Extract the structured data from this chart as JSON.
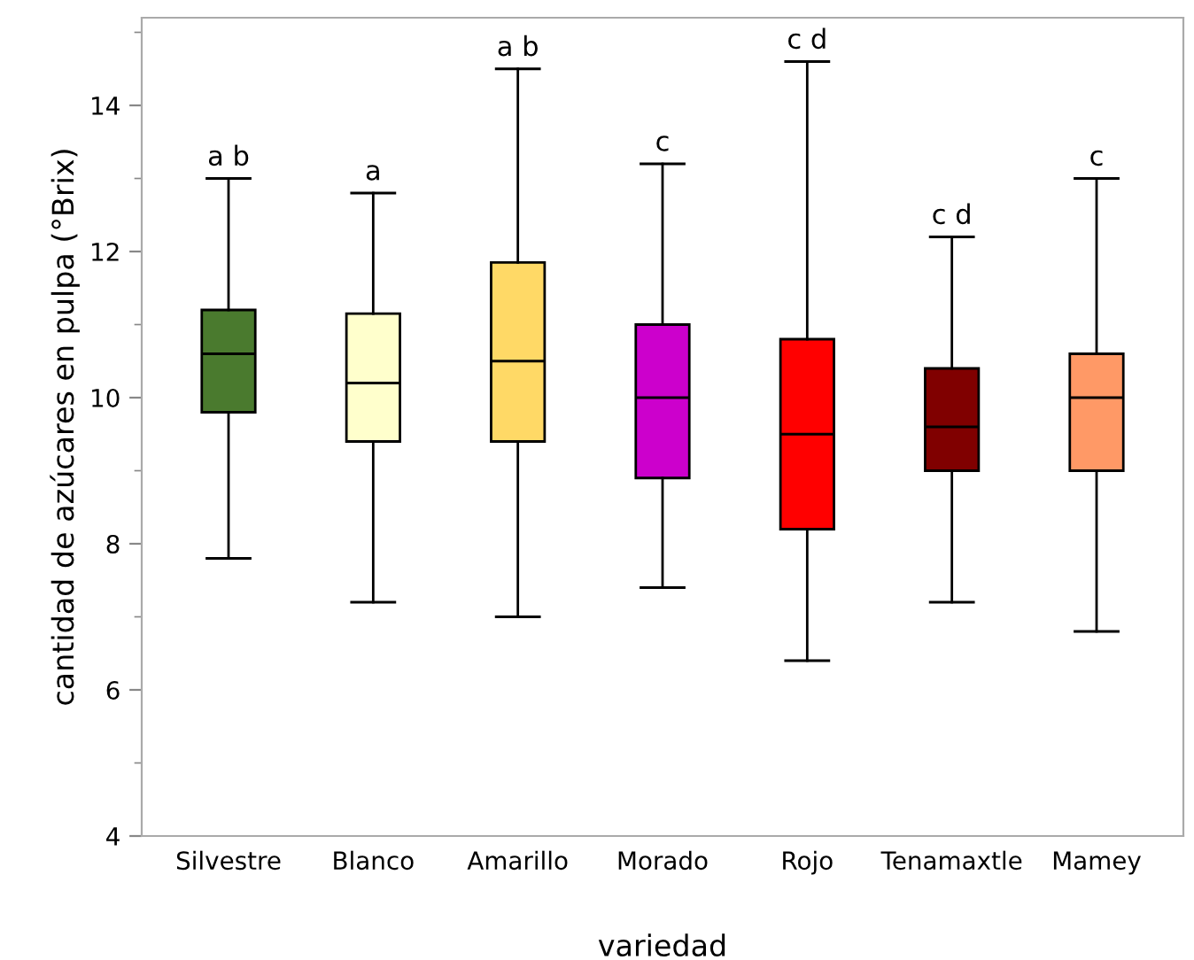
{
  "chart_data": {
    "type": "box",
    "xlabel": "variedad",
    "ylabel": "cantidad de azúcares en pulpa (°Brix)",
    "categories": [
      "Silvestre",
      "Blanco",
      "Amarillo",
      "Morado",
      "Rojo",
      "Tenamaxtle",
      "Mamey"
    ],
    "colors": [
      "#4a7a2e",
      "#ffffcc",
      "#ffd966",
      "#cc00cc",
      "#ff0000",
      "#800000",
      "#ff9966"
    ],
    "boxes": [
      {
        "low": 7.8,
        "q1": 9.8,
        "median": 10.6,
        "q3": 11.2,
        "high": 13.0
      },
      {
        "low": 7.2,
        "q1": 9.4,
        "median": 10.2,
        "q3": 11.15,
        "high": 12.8
      },
      {
        "low": 7.0,
        "q1": 9.4,
        "median": 10.5,
        "q3": 11.85,
        "high": 14.5
      },
      {
        "low": 7.4,
        "q1": 8.9,
        "median": 10.0,
        "q3": 11.0,
        "high": 13.2
      },
      {
        "low": 6.4,
        "q1": 8.2,
        "median": 9.5,
        "q3": 10.8,
        "high": 14.6
      },
      {
        "low": 7.2,
        "q1": 9.0,
        "median": 9.6,
        "q3": 10.4,
        "high": 12.2
      },
      {
        "low": 6.8,
        "q1": 9.0,
        "median": 10.0,
        "q3": 10.6,
        "high": 13.0
      }
    ],
    "annotations": [
      {
        "text": "a b",
        "x": "Silvestre",
        "y": 13.0
      },
      {
        "text": "a",
        "x": "Blanco",
        "y": 12.8
      },
      {
        "text": "a b",
        "x": "Amarillo",
        "y": 14.5
      },
      {
        "text": "c",
        "x": "Morado",
        "y": 13.2
      },
      {
        "text": "c d",
        "x": "Rojo",
        "y": 14.6
      },
      {
        "text": "c d",
        "x": "Tenamaxtle",
        "y": 12.2
      },
      {
        "text": "c",
        "x": "Mamey",
        "y": 13.0
      }
    ],
    "ylim": [
      4,
      15.2
    ],
    "yticks": [
      4,
      {
        "value": 5,
        "label": null
      },
      6,
      {
        "value": 7,
        "label": null
      },
      8,
      {
        "value": 9,
        "label": null
      },
      10,
      {
        "value": 11,
        "label": null
      },
      12,
      {
        "value": 13,
        "label": null
      },
      14,
      {
        "value": 15,
        "label": null
      }
    ],
    "grid": false,
    "legend": false
  }
}
